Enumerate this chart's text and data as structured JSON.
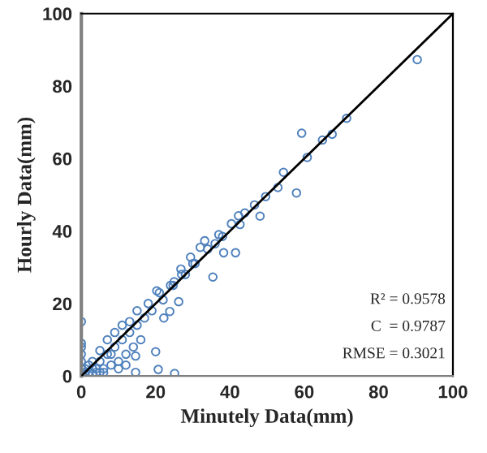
{
  "chart_data": {
    "type": "scatter",
    "xlabel": "Minutely Data(mm)",
    "ylabel": "Hourly Data(mm)",
    "xlim": [
      0,
      100
    ],
    "ylim": [
      0,
      100
    ],
    "xticks": [
      0,
      20,
      40,
      60,
      80,
      100
    ],
    "yticks": [
      0,
      20,
      40,
      60,
      80,
      100
    ],
    "grid": false,
    "marker": "circle",
    "annotations": [
      "R² = 0.9578",
      "C  = 0.9787",
      "RMSE = 0.3021"
    ],
    "series": [
      {
        "color": "#4f81bd",
        "x": [
          90.4,
          59.3,
          64.9,
          67.5,
          71.4,
          60.8,
          57.9,
          54.4,
          52.9,
          49.6,
          48.1,
          46.6,
          42.3,
          40.4,
          42.7,
          41.5,
          38.3,
          33.2,
          35.4,
          29.4,
          26.8,
          24.7,
          26.2,
          22.2,
          23.8,
          20.3,
          20.0,
          20.7,
          25.1,
          0,
          14.6,
          14.6,
          32,
          30.6,
          36,
          38,
          44,
          28,
          25,
          22,
          19,
          17,
          15,
          13,
          11,
          9,
          7,
          5,
          3,
          1,
          0,
          0,
          0,
          0,
          0,
          0.5,
          1,
          2,
          3,
          4,
          5,
          6,
          8,
          10,
          12,
          14,
          16,
          10,
          12,
          8,
          6,
          4,
          2,
          1,
          3,
          5,
          7,
          9,
          11,
          13,
          15,
          18,
          21,
          24,
          27,
          30,
          34,
          37
        ],
        "values": [
          87.3,
          67.0,
          65.1,
          66.7,
          71.1,
          60.3,
          50.5,
          56.2,
          52.0,
          49.5,
          44.1,
          47.2,
          44.2,
          42.0,
          41.8,
          34.0,
          34.0,
          37.3,
          27.3,
          32.8,
          29.5,
          25.0,
          20.5,
          16.0,
          17.8,
          23.5,
          6.7,
          1.8,
          0.7,
          15.0,
          5.5,
          1.0,
          35.5,
          31,
          36.5,
          38.5,
          45,
          28,
          26,
          21,
          18,
          16,
          14,
          12,
          10,
          8,
          6,
          4,
          2,
          1,
          2,
          4,
          6,
          8,
          9,
          0,
          0.5,
          1,
          0.5,
          1,
          1,
          2,
          3,
          4,
          6,
          8,
          10,
          2,
          3,
          6,
          1,
          2,
          3,
          2,
          4,
          7,
          10,
          12,
          14,
          15,
          18,
          20,
          23,
          25,
          28,
          31,
          35,
          39
        ]
      },
      {
        "type": "line",
        "color": "#000000",
        "marker": "none",
        "x": [
          0,
          100
        ],
        "values": [
          0,
          100
        ]
      }
    ]
  }
}
